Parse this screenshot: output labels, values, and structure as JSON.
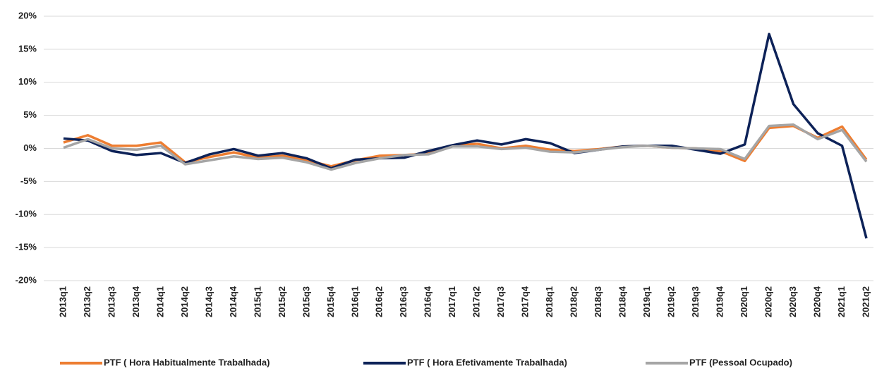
{
  "chart_data": {
    "type": "line",
    "categories": [
      "2013q1",
      "2013q2",
      "2013q3",
      "2013q4",
      "2014q1",
      "2014q2",
      "2014q3",
      "2014q4",
      "2015q1",
      "2015q2",
      "2015q3",
      "2015q4",
      "2016q1",
      "2016q2",
      "2016q3",
      "2016q4",
      "2017q1",
      "2017q2",
      "2017q3",
      "2017q4",
      "2018q1",
      "2018q2",
      "2018q3",
      "2018q4",
      "2019q1",
      "2019q2",
      "2019q3",
      "2019q4",
      "2020q1",
      "2020q2",
      "2020q3",
      "2020q4",
      "2021q1",
      "2021q2"
    ],
    "series": [
      {
        "name": "PTF ( Hora Habitualmente Trabalhada)",
        "color": "#ed7d31",
        "values": [
          0.9,
          2.0,
          0.4,
          0.4,
          0.9,
          -2.1,
          -1.3,
          -0.6,
          -1.4,
          -1.1,
          -1.8,
          -2.7,
          -1.8,
          -1.1,
          -1.0,
          -0.8,
          0.4,
          0.7,
          0.0,
          0.4,
          -0.2,
          -0.4,
          -0.1,
          0.3,
          0.4,
          0.1,
          0.0,
          -0.4,
          -1.9,
          3.1,
          3.4,
          1.6,
          3.3,
          -1.7
        ]
      },
      {
        "name": "PTF ( Hora Efetivamente Trabalhada)",
        "color": "#0d2258",
        "values": [
          1.5,
          1.2,
          -0.4,
          -1.0,
          -0.7,
          -2.2,
          -0.9,
          -0.1,
          -1.1,
          -0.7,
          -1.5,
          -3.0,
          -1.7,
          -1.5,
          -1.4,
          -0.4,
          0.5,
          1.2,
          0.6,
          1.4,
          0.8,
          -0.7,
          -0.2,
          0.3,
          0.4,
          0.4,
          -0.2,
          -0.8,
          0.6,
          17.3,
          6.7,
          2.3,
          0.4,
          -13.6
        ]
      },
      {
        "name": "PTF (Pessoal Ocupado)",
        "color": "#a5a5a5",
        "values": [
          0.1,
          1.4,
          0.0,
          -0.2,
          0.4,
          -2.4,
          -1.8,
          -1.2,
          -1.6,
          -1.4,
          -2.1,
          -3.2,
          -2.2,
          -1.5,
          -1.0,
          -0.9,
          0.3,
          0.3,
          -0.1,
          0.1,
          -0.5,
          -0.6,
          -0.2,
          0.2,
          0.4,
          0.1,
          0.0,
          -0.1,
          -1.6,
          3.4,
          3.6,
          1.4,
          2.8,
          -2.0
        ]
      }
    ],
    "ylim": [
      -20,
      20
    ],
    "yticks": [
      {
        "value": -20,
        "label": "-20%"
      },
      {
        "value": -15,
        "label": "-15%"
      },
      {
        "value": -10,
        "label": "-10%"
      },
      {
        "value": -5,
        "label": "-5%"
      },
      {
        "value": 0,
        "label": "0%"
      },
      {
        "value": 5,
        "label": "5%"
      },
      {
        "value": 10,
        "label": "10%"
      },
      {
        "value": 15,
        "label": "15%"
      },
      {
        "value": 20,
        "label": "20%"
      }
    ],
    "grid": true,
    "legend": "bottom"
  }
}
